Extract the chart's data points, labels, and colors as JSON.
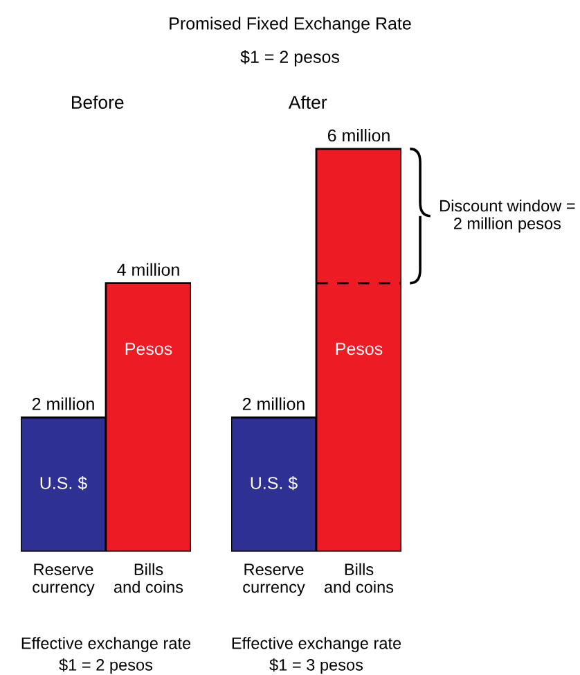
{
  "chart_data": [
    {
      "type": "other",
      "title": "Promised Fixed Exchange Rate",
      "subtitle": "$1 = 2 pesos"
    },
    {
      "type": "bar",
      "title": "Before",
      "categories": [
        "Reserve\ncurrency",
        "Bills\nand coins"
      ],
      "series": [
        {
          "name": "U.S. $",
          "color": "#2e3192",
          "values": [
            2,
            null
          ],
          "value_labels": [
            "2 million",
            null
          ]
        },
        {
          "name": "Pesos",
          "color": "#ed1c24",
          "values": [
            null,
            4
          ],
          "value_labels": [
            null,
            "4 million"
          ]
        }
      ],
      "annotations": [
        "Effective exchange rate\n$1 = 2 pesos"
      ]
    },
    {
      "type": "bar",
      "title": "After",
      "categories": [
        "Reserve\ncurrency",
        "Bills\nand coins"
      ],
      "series": [
        {
          "name": "U.S. $",
          "color": "#2e3192",
          "values": [
            2,
            null
          ],
          "value_labels": [
            "2 million",
            null
          ]
        },
        {
          "name": "Pesos",
          "color": "#ed1c24",
          "values": [
            null,
            6
          ],
          "value_labels": [
            null,
            "6 million"
          ]
        }
      ],
      "ref_lines": [
        {
          "axis": "y",
          "value": 4,
          "line_style": "dashed"
        }
      ],
      "annotations": [
        "Discount window =\n2 million pesos",
        "Effective exchange rate\n$1 = 3 pesos"
      ]
    }
  ]
}
